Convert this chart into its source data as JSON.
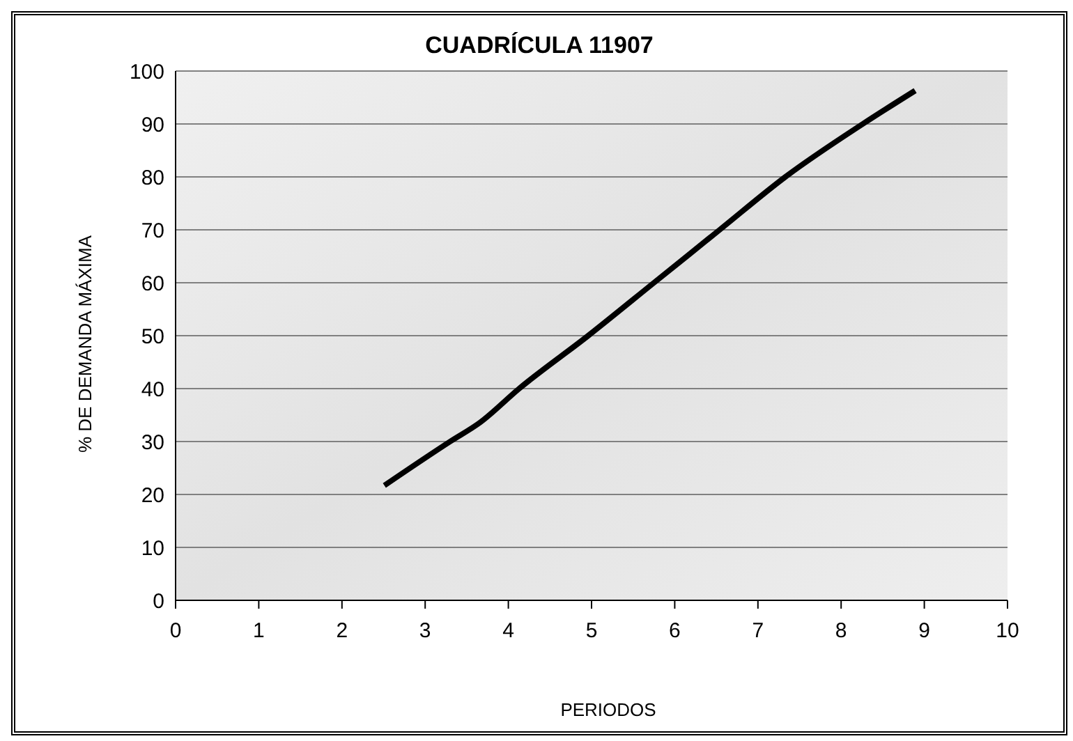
{
  "chart_data": {
    "type": "line",
    "title": "CUADRÍCULA 11907",
    "xlabel": "PERIODOS",
    "ylabel": "% DE DEMANDA MÁXIMA",
    "x": [
      2.51,
      3.3,
      3.66,
      4.13,
      4.96,
      5.75,
      6.54,
      7.33,
      8.26,
      8.89
    ],
    "series": [
      {
        "color": "#000000",
        "values": [
          21.7,
          30,
          33.6,
          40,
          50,
          60,
          70,
          80,
          90,
          96.3
        ]
      }
    ],
    "xlim": [
      0,
      10
    ],
    "xticks": [
      0,
      1,
      2,
      3,
      4,
      5,
      6,
      7,
      8,
      9,
      10
    ],
    "ylim": [
      0,
      100
    ],
    "yticks": [
      0,
      10,
      20,
      30,
      40,
      50,
      60,
      70,
      80,
      90,
      100
    ],
    "grid": "y",
    "legend": false,
    "marker": "none",
    "line_style": "solid"
  }
}
